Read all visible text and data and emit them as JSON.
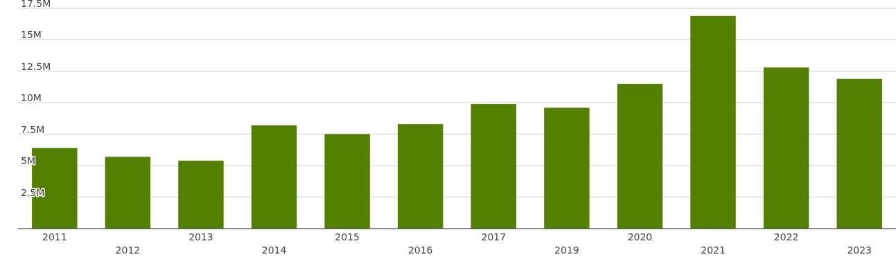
{
  "chart_data": {
    "type": "bar",
    "categories": [
      "2011",
      "2012",
      "2013",
      "2014",
      "2015",
      "2016",
      "2017",
      "2019",
      "2020",
      "2021",
      "2022",
      "2023"
    ],
    "values": [
      6400000,
      5700000,
      5400000,
      8200000,
      7500000,
      8300000,
      9900000,
      9600000,
      11500000,
      16900000,
      12800000,
      11900000
    ],
    "color": "#548000",
    "ylim": [
      0,
      17500000
    ],
    "yticks": [
      {
        "value": 0,
        "label": null
      },
      {
        "value": 2500000,
        "label": "2.5M"
      },
      {
        "value": 5000000,
        "label": "5M"
      },
      {
        "value": 7500000,
        "label": "7.5M"
      },
      {
        "value": 10000000,
        "label": "10M"
      },
      {
        "value": 12500000,
        "label": "12.5M"
      },
      {
        "value": 15000000,
        "label": "15M"
      },
      {
        "value": 17500000,
        "label": "17.5M"
      }
    ],
    "grid": true
  }
}
